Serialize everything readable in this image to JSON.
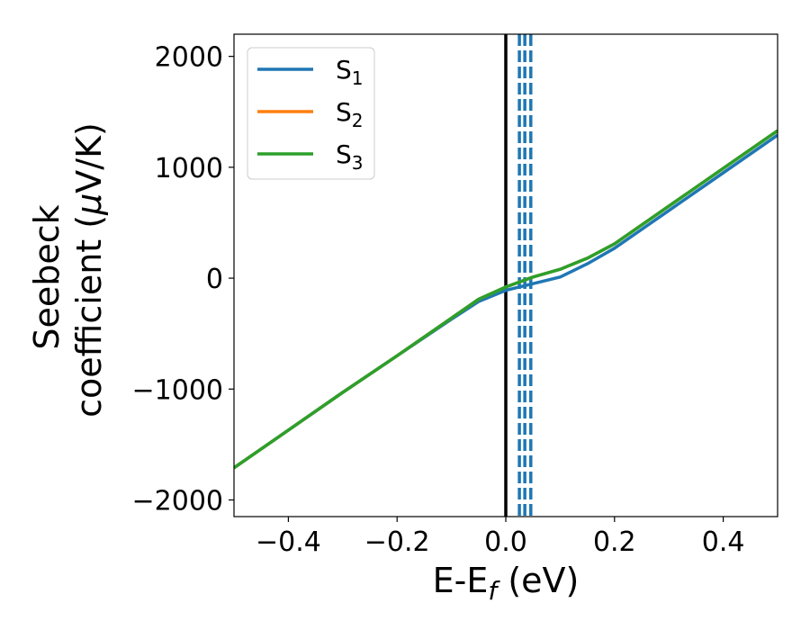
{
  "chart_data": {
    "type": "line",
    "xlabel_main": "E-E",
    "xlabel_sub": "f",
    "xlabel_unit": " (eV)",
    "ylabel_line1": "Seebeck",
    "ylabel_line2_prefix": "coefficient  (",
    "ylabel_mu": "μ",
    "ylabel_line2_suffix": "V/K)",
    "xlim": [
      -0.5,
      0.5
    ],
    "ylim": [
      -2150,
      2200
    ],
    "x_ticks": [
      -0.4,
      -0.2,
      0.0,
      0.2,
      0.4
    ],
    "x_tick_labels": [
      "−0.4",
      "−0.2",
      "0.0",
      "0.2",
      "0.4"
    ],
    "y_ticks": [
      -2000,
      -1000,
      0,
      1000,
      2000
    ],
    "y_tick_labels": [
      "−2000",
      "−1000",
      "0",
      "1000",
      "2000"
    ],
    "fermi_line_x": 0.0,
    "dashed_lines_x": [
      0.025,
      0.035,
      0.046
    ],
    "legend_position": "top-left",
    "series": [
      {
        "name": "S",
        "sub": "1",
        "color": "#1f77b4",
        "x": [
          -0.5,
          -0.4,
          -0.3,
          -0.2,
          -0.1,
          -0.05,
          0.0,
          0.05,
          0.1,
          0.15,
          0.2,
          0.3,
          0.4,
          0.5
        ],
        "values": [
          -1710,
          -1370,
          -1030,
          -700,
          -370,
          -210,
          -110,
          -50,
          10,
          130,
          270,
          610,
          950,
          1290
        ]
      },
      {
        "name": "S",
        "sub": "2",
        "color": "#ff7f0e",
        "x": [
          -0.5,
          -0.4,
          -0.3,
          -0.2,
          -0.1,
          -0.05,
          0.0,
          0.05,
          0.1,
          0.15,
          0.2,
          0.3,
          0.4,
          0.5
        ],
        "values": [
          -1710,
          -1370,
          -1030,
          -700,
          -360,
          -190,
          -80,
          10,
          80,
          180,
          310,
          650,
          990,
          1330
        ]
      },
      {
        "name": "S",
        "sub": "3",
        "color": "#2ca02c",
        "x": [
          -0.5,
          -0.4,
          -0.3,
          -0.2,
          -0.1,
          -0.05,
          0.0,
          0.05,
          0.1,
          0.15,
          0.2,
          0.3,
          0.4,
          0.5
        ],
        "values": [
          -1710,
          -1370,
          -1030,
          -700,
          -360,
          -190,
          -80,
          10,
          80,
          180,
          310,
          650,
          990,
          1330
        ]
      }
    ]
  }
}
